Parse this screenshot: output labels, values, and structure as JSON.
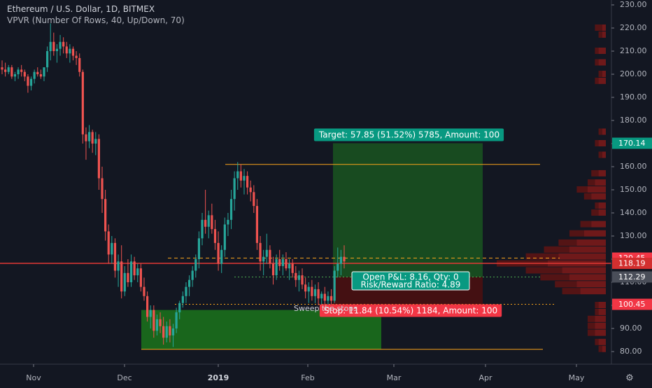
{
  "header": {
    "symbol_line": "Ethereum / U.S. Dollar, 1D, BITMEX",
    "indicator_line": "VPVR (Number Of Rows, 40, Up/Down, 70)"
  },
  "colors": {
    "background": "#131722",
    "up": "#26a69a",
    "down": "#ef5350",
    "target_zone": "#1b5e20",
    "stop_zone": "#4e0f0f",
    "target_label_bg": "#089981",
    "stop_label_bg": "#f23645",
    "price_line": "#e53935",
    "level_line": "#f7a21b",
    "volume_profile": "#7a1a1a"
  },
  "chart_data": {
    "type": "candlestick",
    "title": "Ethereum / U.S. Dollar, 1D, BITMEX",
    "ylim": [
      77,
      232
    ],
    "y_ticks": [
      "230.00",
      "220.00",
      "210.00",
      "200.00",
      "190.00",
      "180.00",
      "170.00",
      "160.00",
      "150.00",
      "140.00",
      "130.00",
      "120.00",
      "110.00",
      "100.00",
      "90.00",
      "80.00"
    ],
    "x_ticks": [
      "Nov",
      "Dec",
      "2019",
      "Feb",
      "Mar",
      "Apr",
      "May"
    ],
    "price_badges": [
      {
        "value": "170.14",
        "style": "target"
      },
      {
        "value": "120.45",
        "style": "price"
      },
      {
        "value": "118.19",
        "style": "current"
      },
      {
        "value": "112.29",
        "style": "neutral"
      },
      {
        "value": "100.45",
        "style": "stop"
      }
    ],
    "ohlc": [
      [
        203,
        206,
        200,
        202
      ],
      [
        202,
        205,
        199,
        201
      ],
      [
        201,
        204,
        200,
        203
      ],
      [
        203,
        204,
        198,
        199
      ],
      [
        199,
        201,
        197,
        200
      ],
      [
        200,
        203,
        198,
        202
      ],
      [
        202,
        204,
        199,
        201
      ],
      [
        201,
        202,
        197,
        199
      ],
      [
        199,
        200,
        192,
        195
      ],
      [
        195,
        199,
        193,
        198
      ],
      [
        198,
        202,
        196,
        201
      ],
      [
        201,
        203,
        199,
        200
      ],
      [
        200,
        202,
        198,
        199
      ],
      [
        199,
        203,
        197,
        203
      ],
      [
        203,
        212,
        201,
        210
      ],
      [
        210,
        222,
        206,
        214
      ],
      [
        214,
        218,
        208,
        210
      ],
      [
        210,
        213,
        205,
        211
      ],
      [
        211,
        217,
        208,
        214
      ],
      [
        214,
        216,
        209,
        212
      ],
      [
        212,
        214,
        207,
        209
      ],
      [
        209,
        213,
        205,
        211
      ],
      [
        211,
        212,
        206,
        208
      ],
      [
        208,
        210,
        204,
        207
      ],
      [
        207,
        209,
        199,
        201
      ],
      [
        201,
        202,
        170,
        174
      ],
      [
        174,
        177,
        163,
        171
      ],
      [
        171,
        178,
        168,
        175
      ],
      [
        175,
        176,
        166,
        170
      ],
      [
        170,
        175,
        165,
        172
      ],
      [
        172,
        174,
        150,
        155
      ],
      [
        155,
        160,
        140,
        146
      ],
      [
        146,
        150,
        128,
        132
      ],
      [
        132,
        135,
        118,
        122
      ],
      [
        122,
        130,
        118,
        127
      ],
      [
        127,
        129,
        112,
        115
      ],
      [
        115,
        122,
        108,
        119
      ],
      [
        119,
        126,
        103,
        106
      ],
      [
        106,
        117,
        104,
        114
      ],
      [
        114,
        120,
        108,
        110
      ],
      [
        110,
        122,
        108,
        119
      ],
      [
        119,
        121,
        111,
        113
      ],
      [
        113,
        118,
        110,
        116
      ],
      [
        116,
        118,
        106,
        108
      ],
      [
        108,
        112,
        102,
        104
      ],
      [
        104,
        106,
        93,
        95
      ],
      [
        95,
        100,
        90,
        98
      ],
      [
        98,
        100,
        86,
        89
      ],
      [
        89,
        96,
        87,
        94
      ],
      [
        94,
        97,
        88,
        91
      ],
      [
        91,
        95,
        83,
        86
      ],
      [
        86,
        93,
        84,
        91
      ],
      [
        91,
        94,
        84,
        87
      ],
      [
        87,
        92,
        82,
        90
      ],
      [
        90,
        99,
        88,
        97
      ],
      [
        97,
        102,
        94,
        101
      ],
      [
        101,
        106,
        99,
        104
      ],
      [
        104,
        110,
        101,
        108
      ],
      [
        108,
        113,
        104,
        111
      ],
      [
        111,
        117,
        108,
        115
      ],
      [
        115,
        122,
        112,
        120
      ],
      [
        120,
        132,
        116,
        129
      ],
      [
        129,
        140,
        126,
        137
      ],
      [
        137,
        150,
        131,
        134
      ],
      [
        134,
        141,
        129,
        139
      ],
      [
        139,
        144,
        131,
        133
      ],
      [
        133,
        137,
        124,
        127
      ],
      [
        127,
        132,
        115,
        118
      ],
      [
        118,
        126,
        114,
        124
      ],
      [
        124,
        138,
        121,
        135
      ],
      [
        135,
        140,
        130,
        137
      ],
      [
        137,
        150,
        133,
        146
      ],
      [
        146,
        158,
        141,
        155
      ],
      [
        155,
        162,
        150,
        158
      ],
      [
        158,
        161,
        151,
        154
      ],
      [
        154,
        159,
        148,
        156
      ],
      [
        156,
        158,
        148,
        151
      ],
      [
        151,
        154,
        145,
        149
      ],
      [
        149,
        152,
        140,
        143
      ],
      [
        143,
        146,
        124,
        127
      ],
      [
        127,
        130,
        115,
        119
      ],
      [
        119,
        124,
        113,
        121
      ],
      [
        121,
        131,
        118,
        124
      ],
      [
        124,
        126,
        116,
        118
      ],
      [
        118,
        121,
        109,
        113
      ],
      [
        113,
        122,
        111,
        120
      ],
      [
        120,
        124,
        115,
        117
      ],
      [
        117,
        122,
        113,
        120
      ],
      [
        120,
        123,
        115,
        116
      ],
      [
        116,
        120,
        111,
        118
      ],
      [
        118,
        120,
        112,
        114
      ],
      [
        114,
        117,
        108,
        111
      ],
      [
        111,
        115,
        106,
        113
      ],
      [
        113,
        116,
        107,
        109
      ],
      [
        109,
        112,
        103,
        106
      ],
      [
        106,
        110,
        101,
        108
      ],
      [
        108,
        111,
        102,
        104
      ],
      [
        104,
        109,
        101,
        107
      ],
      [
        107,
        110,
        100,
        103
      ],
      [
        103,
        106,
        99,
        105
      ],
      [
        105,
        108,
        100,
        102
      ],
      [
        102,
        106,
        98,
        104
      ],
      [
        104,
        107,
        100,
        102
      ],
      [
        102,
        117,
        101,
        115
      ],
      [
        115,
        125,
        112,
        118
      ],
      [
        118,
        124,
        113,
        121
      ],
      [
        121,
        126,
        116,
        119
      ]
    ],
    "volume_profile": [
      [
        220,
        2,
        1
      ],
      [
        217,
        1,
        1
      ],
      [
        210,
        1,
        2
      ],
      [
        205,
        1,
        2
      ],
      [
        200,
        1,
        1
      ],
      [
        197,
        1,
        2
      ],
      [
        175,
        1,
        1
      ],
      [
        170,
        1,
        2
      ],
      [
        165,
        1,
        1
      ],
      [
        157,
        2,
        2
      ],
      [
        153,
        2,
        3
      ],
      [
        150,
        3,
        5
      ],
      [
        147,
        2,
        4
      ],
      [
        143,
        1,
        2
      ],
      [
        140,
        2,
        2
      ],
      [
        135,
        3,
        4
      ],
      [
        131,
        4,
        6
      ],
      [
        127,
        5,
        8
      ],
      [
        124,
        7,
        10
      ],
      [
        121,
        9,
        13
      ],
      [
        118,
        14,
        16
      ],
      [
        115,
        10,
        12
      ],
      [
        112,
        8,
        10
      ],
      [
        109,
        6,
        8
      ],
      [
        106,
        5,
        7
      ],
      [
        100,
        1,
        2
      ],
      [
        97,
        1,
        2
      ],
      [
        94,
        2,
        3
      ],
      [
        91,
        2,
        3
      ],
      [
        88,
        2,
        3
      ],
      [
        84,
        1,
        2
      ],
      [
        81,
        1,
        1
      ]
    ],
    "position_tool": {
      "entry": 112.29,
      "target": 170.14,
      "stop": 100.45,
      "target_label": "Target: 57.85 (51.52%) 5785, Amount: 100",
      "stop_label": "Stop: 11.84 (10.54%) 1184, Amount: 100",
      "pnl_label": "Open P&L: 8.16, Qty: 0",
      "rr_label": "Risk/Reward Ratio: 4.89"
    },
    "demand_zone": {
      "top": 98,
      "bottom": 81
    },
    "horizontal_levels": [
      {
        "value": 161,
        "style": "solid-orange"
      },
      {
        "value": 120.45,
        "style": "dashed-orange"
      },
      {
        "value": 118.19,
        "style": "solid-red"
      },
      {
        "value": 112.29,
        "style": "dotted-green"
      },
      {
        "value": 100.45,
        "style": "dotted-orange"
      },
      {
        "value": 81,
        "style": "solid-orange"
      }
    ],
    "annotation": "Sweep the stops"
  }
}
